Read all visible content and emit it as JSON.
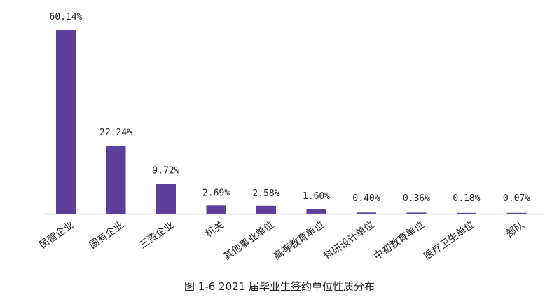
{
  "chart_data": {
    "type": "bar",
    "title": "图 1-6   2021 届毕业生签约单位性质分布",
    "categories": [
      "民营企业",
      "国有企业",
      "三资企业",
      "机关",
      "其他事业单位",
      "高等教育单位",
      "科研设计单位",
      "中初教育单位",
      "医疗卫生单位",
      "部队"
    ],
    "values": [
      60.14,
      22.24,
      9.72,
      2.69,
      2.58,
      1.6,
      0.4,
      0.36,
      0.18,
      0.07
    ],
    "value_labels": [
      "60.14%",
      "22.24%",
      "9.72%",
      "2.69%",
      "2.58%",
      "1.60%",
      "0.40%",
      "0.36%",
      "0.18%",
      "0.07%"
    ],
    "ylim": [
      0,
      60.14
    ],
    "xlabel": "",
    "ylabel": "",
    "grid": false,
    "bar_color": "#5b3f9a",
    "axis_color": "#999999"
  }
}
